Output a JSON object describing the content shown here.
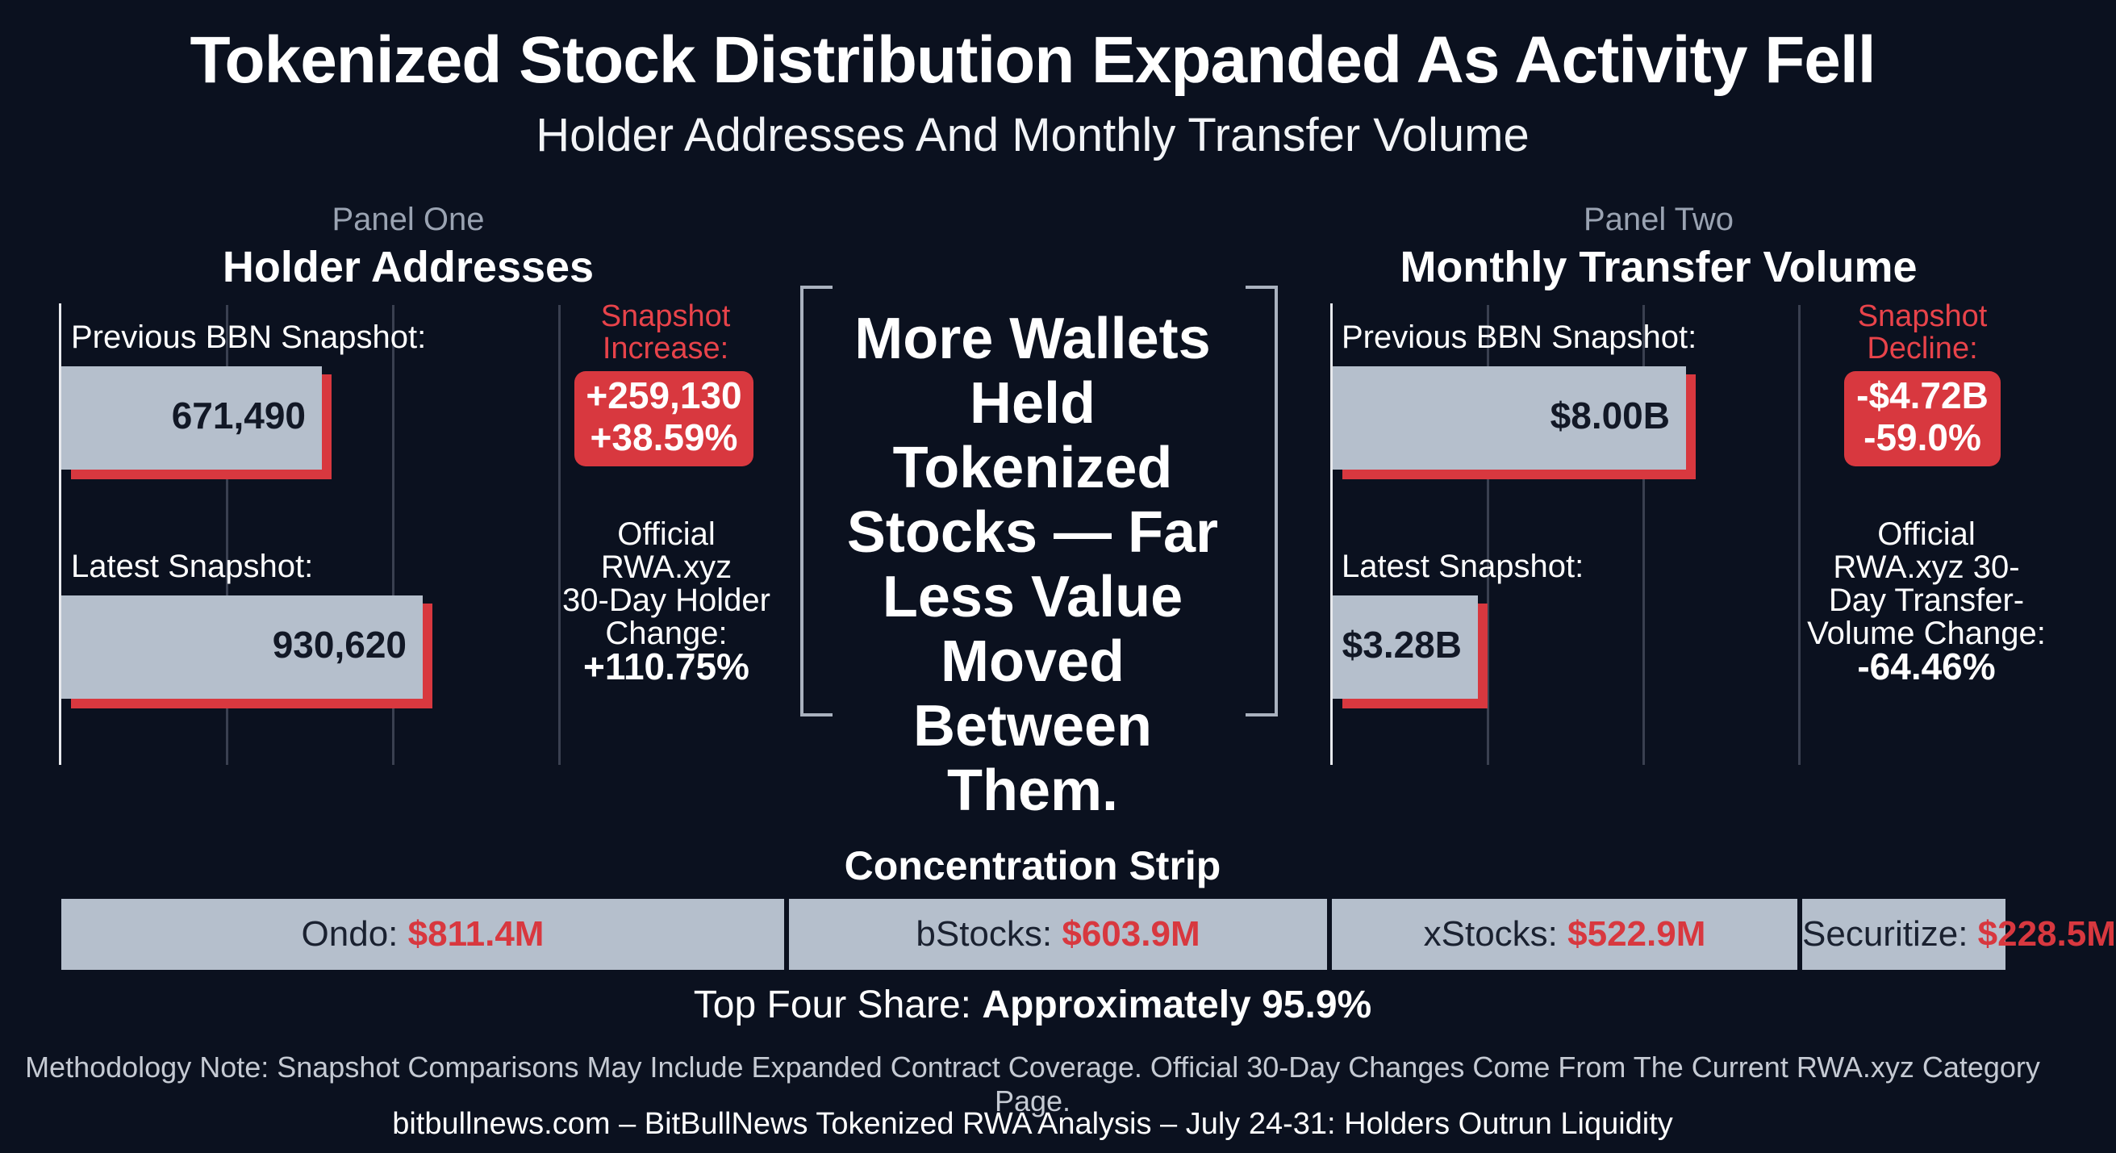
{
  "header": {
    "title": "Tokenized Stock Distribution Expanded As Activity Fell",
    "subtitle": "Holder Addresses And Monthly Transfer Volume"
  },
  "panel_one": {
    "kicker": "Panel One",
    "title": "Holder Addresses",
    "previous_label": "Previous BBN Snapshot:",
    "previous_value": "671,490",
    "latest_label": "Latest Snapshot:",
    "latest_value": "930,620",
    "change_head_1": "Snapshot",
    "change_head_2": "Increase:",
    "change_abs": "+259,130",
    "change_pct": "+38.59%",
    "official_1": "Official",
    "official_2": "RWA.xyz",
    "official_3": "30-Day Holder",
    "official_4": "Change:",
    "official_value": "+110.75%"
  },
  "center_quote": {
    "line_1": "More Wallets",
    "line_2": "Held Tokenized",
    "line_3": "Stocks — Far",
    "line_4": "Less Value",
    "line_5": "Moved",
    "line_6": "Between Them."
  },
  "panel_two": {
    "kicker": "Panel Two",
    "title": "Monthly Transfer Volume",
    "previous_label": "Previous BBN Snapshot:",
    "previous_value": "$8.00B",
    "latest_label": "Latest Snapshot:",
    "latest_value": "$3.28B",
    "change_head_1": "Snapshot",
    "change_head_2": "Decline:",
    "change_abs": "-$4.72B",
    "change_pct": "-59.0%",
    "official_1": "Official",
    "official_2": "RWA.xyz 30-",
    "official_3": "Day Transfer-",
    "official_4": "Volume Change:",
    "official_value": "-64.46%"
  },
  "concentration": {
    "title": "Concentration Strip",
    "share_label": "Top Four Share:",
    "share_value": "Approximately 95.9%"
  },
  "footer": {
    "methodology": "Methodology Note: Snapshot Comparisons May Include Expanded Contract Coverage. Official 30-Day Changes Come From The Current RWA.xyz Category Page.",
    "credit": "bitbullnews.com – BitBullNews Tokenized RWA Analysis – July 24-31: Holders Outrun Liquidity"
  },
  "colors": {
    "background": "#0b111f",
    "bar": "#b5bfcc",
    "accent_red": "#d8383f",
    "text": "#ffffff"
  },
  "chart_data": [
    {
      "type": "bar",
      "orientation": "horizontal",
      "title": "Holder Addresses",
      "categories": [
        "Previous BBN Snapshot:",
        "Latest Snapshot:"
      ],
      "values": [
        671490,
        930620
      ],
      "value_labels": [
        "671,490",
        "930,620"
      ],
      "grid": true
    },
    {
      "type": "bar",
      "orientation": "horizontal",
      "title": "Monthly Transfer Volume",
      "categories": [
        "Previous BBN Snapshot:",
        "Latest Snapshot:"
      ],
      "values": [
        8.0,
        3.28
      ],
      "value_labels": [
        "$8.00B",
        "$3.28B"
      ],
      "grid": true
    },
    {
      "type": "bar",
      "title": "Concentration Strip",
      "categories": [
        "Ondo:",
        "bStocks:",
        "xStocks:",
        "Securitize:"
      ],
      "values": [
        811.4,
        603.9,
        522.9,
        228.5
      ],
      "value_labels": [
        "$811.4M",
        "$603.9M",
        "$522.9M",
        "$228.5M"
      ]
    }
  ]
}
